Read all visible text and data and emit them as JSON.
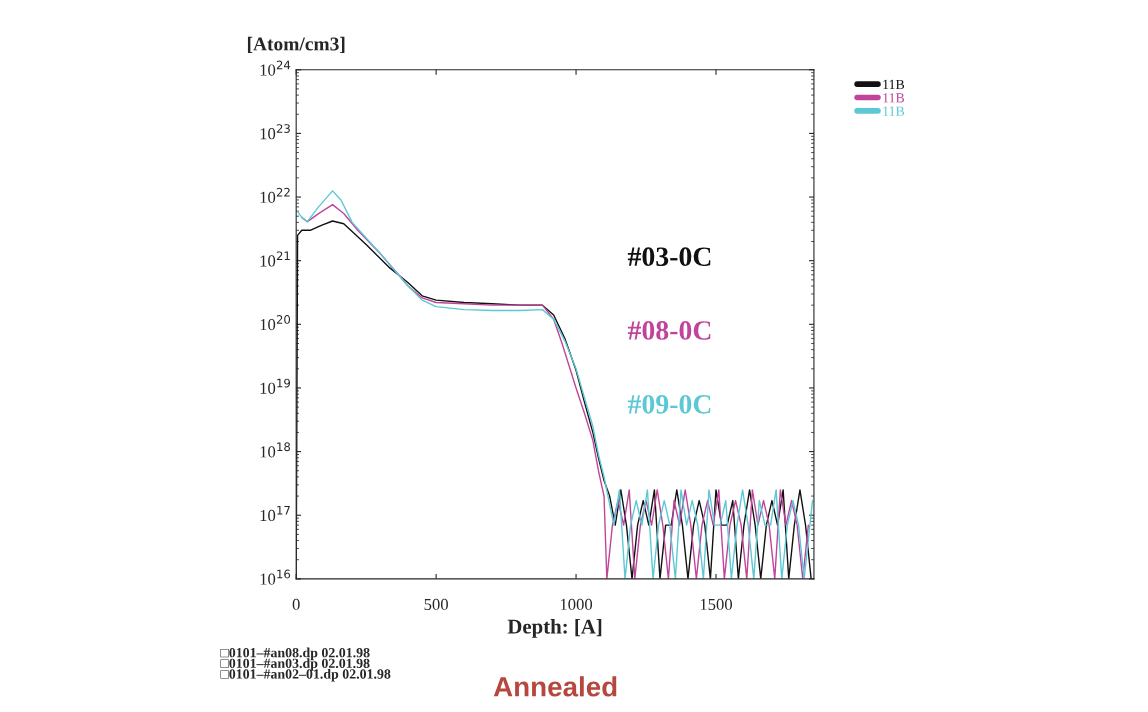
{
  "chart_data": {
    "type": "line",
    "xlabel": "Depth: [A]",
    "ylabel": "[Atom/cm3]",
    "log": "y",
    "xlim": [
      0,
      1850
    ],
    "xticks": [
      0,
      500,
      1000,
      1500
    ],
    "ylim": [
      1e+16,
      1e+24
    ],
    "yticks": [
      {
        "value": 1e+16,
        "label": "10$^{16}$"
      },
      {
        "value": 1e+17,
        "label": "10$^{17}$"
      },
      {
        "value": 1e+18,
        "label": "10$^{18}$"
      },
      {
        "value": 1e+19,
        "label": "10$^{19}$"
      },
      {
        "value": 1e+20,
        "label": "10$^{20}$"
      },
      {
        "value": 1e+21,
        "label": "10$^{21}$"
      },
      {
        "value": 1e+22,
        "label": "10$^{22}$"
      },
      {
        "value": 1e+23,
        "label": "10$^{23}$"
      },
      {
        "value": 1e+24,
        "label": "10$^{24}$"
      }
    ],
    "grid": false,
    "legend": "top right",
    "series": [
      {
        "name": "11B",
        "color": "#111111",
        "x": [
          0,
          5,
          20,
          50,
          90,
          130,
          170,
          250,
          330,
          400,
          450,
          500,
          600,
          700,
          800,
          880,
          920,
          960,
          1000,
          1030,
          1060,
          1080,
          1100,
          1120,
          1140,
          1160,
          1180,
          1200,
          1220,
          1240,
          1260,
          1280,
          1300,
          1320,
          1340,
          1360,
          1380,
          1400,
          1420,
          1440,
          1460,
          1480,
          1500,
          1520,
          1540,
          1560,
          1580,
          1600,
          1620,
          1640,
          1660,
          1680,
          1700,
          1720,
          1740,
          1760,
          1780,
          1800,
          1820,
          1840
        ],
        "values": [
          1e+16,
          2.5e+21,
          3e+21,
          3e+21,
          3.6e+21,
          4.2e+21,
          3.8e+21,
          1.8e+21,
          8e+20,
          4.5e+20,
          2.8e+20,
          2.4e+20,
          2.2e+20,
          2.1e+20,
          2e+20,
          2e+20,
          1.4e+20,
          6e+19,
          1.9e+19,
          6e+18,
          2e+18,
          8e+17,
          3.5e+17,
          2e+17,
          7e+16,
          2.5e+17,
          7e+16,
          1e+16,
          7e+16,
          1.7e+17,
          7e+16,
          2.5e+17,
          1e+16,
          7e+16,
          7e+16,
          2.5e+17,
          7e+16,
          1e+16,
          7e+16,
          1.7e+17,
          7e+16,
          1e+16,
          2.5e+17,
          7e+16,
          7e+16,
          1.7e+17,
          1e+16,
          7e+16,
          2.5e+17,
          7e+16,
          1e+16,
          7e+16,
          1.7e+17,
          7e+16,
          2.5e+17,
          1e+16,
          7e+16,
          2.5e+17,
          7e+16,
          1e+16
        ]
      },
      {
        "name": "11B",
        "color": "#c0449a",
        "x": [
          20,
          40,
          80,
          130,
          170,
          220,
          300,
          400,
          450,
          500,
          600,
          700,
          800,
          880,
          920,
          950,
          1000,
          1030,
          1060,
          1080,
          1100,
          1110,
          1130,
          1150,
          1170,
          1190,
          1210,
          1230,
          1250,
          1270,
          1290,
          1310,
          1330,
          1350,
          1370,
          1390,
          1410,
          1430,
          1450,
          1470,
          1490,
          1510,
          1530,
          1550,
          1570,
          1590,
          1610,
          1630,
          1650,
          1670,
          1690,
          1710,
          1730,
          1750,
          1770,
          1790,
          1810,
          1830
        ],
        "values": [
          4.8e+21,
          4.1e+21,
          5.5e+21,
          7.6e+21,
          5.5e+21,
          3e+21,
          1.3e+21,
          4e+20,
          2.6e+20,
          2.2e+20,
          2.1e+20,
          2e+20,
          2e+20,
          2e+20,
          1.2e+20,
          5e+19,
          1e+19,
          4e+18,
          1.5e+18,
          5e+17,
          2e+17,
          1e+16,
          7e+16,
          1.7e+17,
          7e+16,
          2.5e+17,
          1e+16,
          7e+16,
          1.7e+17,
          7e+16,
          2.5e+17,
          7e+16,
          1e+16,
          1.7e+17,
          7e+16,
          2.5e+17,
          7e+16,
          1e+16,
          7e+16,
          1.7e+17,
          7e+16,
          2.5e+17,
          1e+16,
          7e+16,
          1.7e+17,
          7e+16,
          1e+16,
          2.5e+17,
          7e+16,
          1.7e+17,
          7e+16,
          1e+16,
          2.5e+17,
          7e+16,
          1.7e+17,
          7e+16,
          1e+16,
          7e+16
        ]
      },
      {
        "name": "11B",
        "color": "#5bc8d6",
        "x": [
          5,
          20,
          40,
          80,
          130,
          160,
          200,
          300,
          400,
          450,
          500,
          600,
          700,
          800,
          880,
          920,
          960,
          1000,
          1030,
          1060,
          1080,
          1100,
          1120,
          1135,
          1155,
          1175,
          1195,
          1215,
          1235,
          1255,
          1275,
          1295,
          1315,
          1335,
          1355,
          1375,
          1395,
          1415,
          1435,
          1455,
          1475,
          1495,
          1515,
          1535,
          1555,
          1575,
          1595,
          1615,
          1635,
          1655,
          1675,
          1695,
          1715,
          1735,
          1755,
          1775,
          1795,
          1815,
          1845
        ],
        "values": [
          5.9e+21,
          4.8e+21,
          4.1e+21,
          7e+21,
          1.25e+22,
          9e+21,
          4e+21,
          1.3e+21,
          4e+20,
          2.4e+20,
          1.9e+20,
          1.7e+20,
          1.65e+20,
          1.65e+20,
          1.7e+20,
          1.2e+20,
          5.5e+19,
          2e+19,
          7e+18,
          2.5e+18,
          9e+17,
          4e+17,
          1.5e+17,
          7e+16,
          2.5e+17,
          1e+16,
          7e+16,
          1.7e+17,
          7e+16,
          2.5e+17,
          1e+16,
          7e+16,
          1.7e+17,
          7e+16,
          1e+16,
          2.5e+17,
          7e+16,
          1.7e+17,
          7e+16,
          1e+16,
          2.5e+17,
          7e+16,
          7e+16,
          1.7e+17,
          1e+16,
          7e+16,
          2.5e+17,
          7e+16,
          1e+16,
          1.7e+17,
          7e+16,
          7e+16,
          2.5e+17,
          1e+16,
          7e+16,
          1.7e+17,
          7e+16,
          1e+16,
          1.7e+17
        ]
      }
    ],
    "annotations": [
      "#03-0C",
      "#08-0C",
      "#09-0C",
      "□0101–#an08.dp 02.01.98\n□0101–#an03.dp 02.01.98\n□0101–#an02–01.dp 02.01.98",
      "Annealed"
    ]
  }
}
